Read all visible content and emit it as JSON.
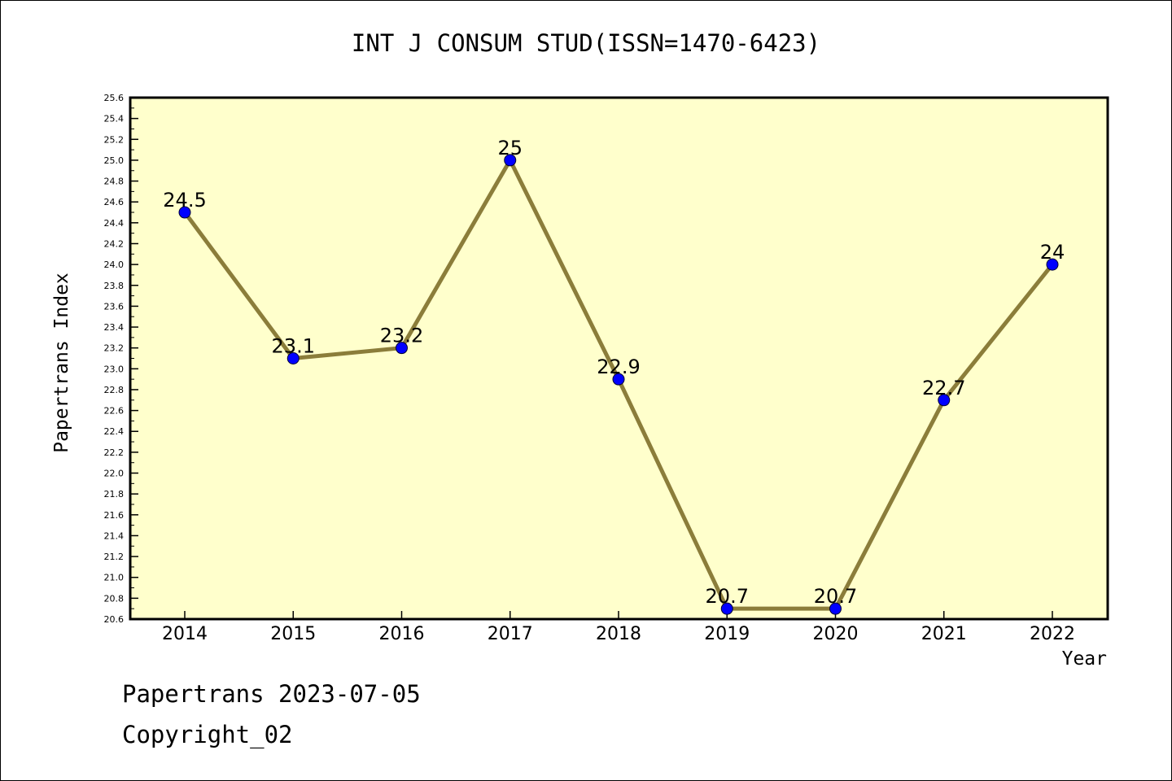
{
  "chart_data": {
    "type": "line",
    "title": "INT J CONSUM STUD(ISSN=1470-6423)",
    "xlabel": "Year",
    "ylabel": "Papertrans Index",
    "categories": [
      "2014",
      "2015",
      "2016",
      "2017",
      "2018",
      "2019",
      "2020",
      "2021",
      "2022"
    ],
    "values": [
      24.5,
      23.1,
      23.2,
      25,
      22.9,
      20.7,
      20.7,
      22.7,
      24
    ],
    "data_labels": [
      "24.5",
      "23.1",
      "23.2",
      "25",
      "22.9",
      "20.7",
      "20.7",
      "22.7",
      "24"
    ],
    "ylim": [
      20.6,
      25.6
    ],
    "yticks": [
      "20.6",
      "20.8",
      "21.0",
      "21.2",
      "21.4",
      "21.6",
      "21.8",
      "22.0",
      "22.2",
      "22.4",
      "22.6",
      "22.8",
      "23.0",
      "23.2",
      "23.4",
      "23.6",
      "23.8",
      "24.0",
      "24.2",
      "24.4",
      "24.6",
      "24.8",
      "25.0",
      "25.2",
      "25.4",
      "25.6"
    ],
    "grid": false,
    "colors": {
      "plot_background": "#ffffcc",
      "line": "#8b7d3a",
      "marker": "#0000ff"
    }
  },
  "footer": {
    "date_line": "Papertrans 2023-07-05",
    "copyright": "Copyright_02"
  }
}
